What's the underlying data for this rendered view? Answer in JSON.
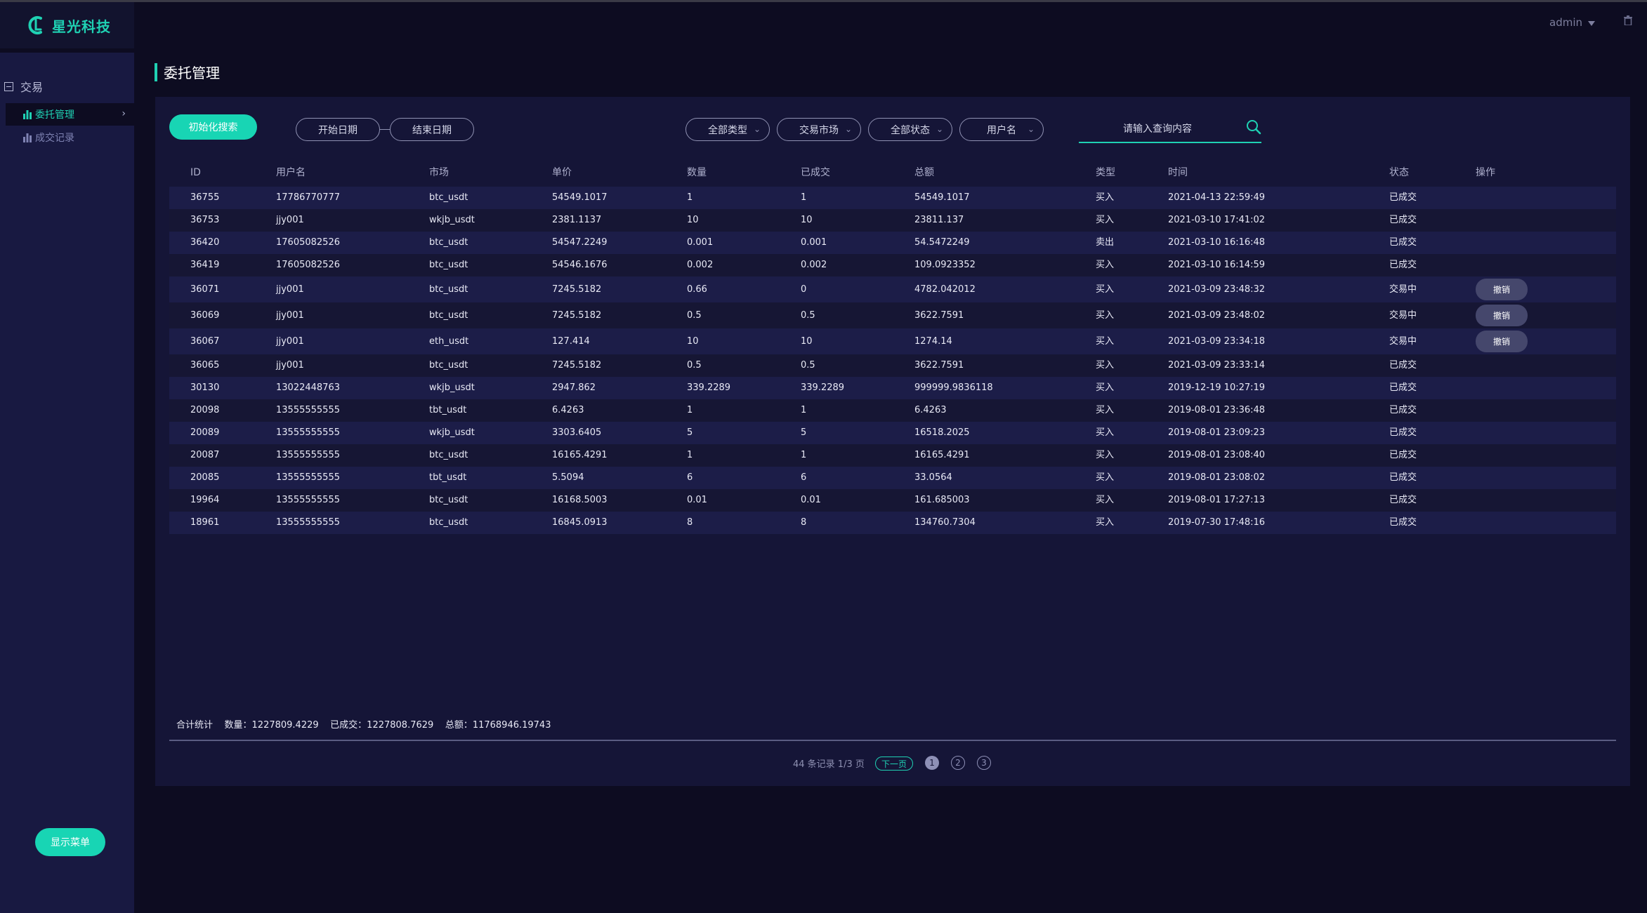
{
  "brand": {
    "name": "星光科技"
  },
  "header": {
    "user": "admin"
  },
  "sidebar": {
    "group_label": "交易",
    "items": [
      {
        "label": "委托管理",
        "active": true
      },
      {
        "label": "成交记录",
        "active": false
      }
    ],
    "show_menu_label": "显示菜单"
  },
  "page": {
    "title": "委托管理"
  },
  "filters": {
    "init_search_label": "初始化搜索",
    "start_date": "开始日期",
    "end_date": "结束日期",
    "type": "全部类型",
    "market": "交易市场",
    "status": "全部状态",
    "username": "用户名",
    "search_placeholder": "请输入查询内容"
  },
  "table": {
    "columns": [
      "ID",
      "用户名",
      "市场",
      "单价",
      "数量",
      "已成交",
      "总额",
      "类型",
      "时间",
      "状态",
      "操作"
    ],
    "revoke_label": "撤销",
    "rows": [
      [
        "36755",
        "17786770777",
        "btc_usdt",
        "54549.1017",
        "1",
        "1",
        "54549.1017",
        "买入",
        "2021-04-13 22:59:49",
        "已成交",
        ""
      ],
      [
        "36753",
        "jjy001",
        "wkjb_usdt",
        "2381.1137",
        "10",
        "10",
        "23811.137",
        "买入",
        "2021-03-10 17:41:02",
        "已成交",
        ""
      ],
      [
        "36420",
        "17605082526",
        "btc_usdt",
        "54547.2249",
        "0.001",
        "0.001",
        "54.5472249",
        "卖出",
        "2021-03-10 16:16:48",
        "已成交",
        ""
      ],
      [
        "36419",
        "17605082526",
        "btc_usdt",
        "54546.1676",
        "0.002",
        "0.002",
        "109.0923352",
        "买入",
        "2021-03-10 16:14:59",
        "已成交",
        ""
      ],
      [
        "36071",
        "jjy001",
        "btc_usdt",
        "7245.5182",
        "0.66",
        "0",
        "4782.042012",
        "买入",
        "2021-03-09 23:48:32",
        "交易中",
        "撤销"
      ],
      [
        "36069",
        "jjy001",
        "btc_usdt",
        "7245.5182",
        "0.5",
        "0.5",
        "3622.7591",
        "买入",
        "2021-03-09 23:48:02",
        "交易中",
        "撤销"
      ],
      [
        "36067",
        "jjy001",
        "eth_usdt",
        "127.414",
        "10",
        "10",
        "1274.14",
        "买入",
        "2021-03-09 23:34:18",
        "交易中",
        "撤销"
      ],
      [
        "36065",
        "jjy001",
        "btc_usdt",
        "7245.5182",
        "0.5",
        "0.5",
        "3622.7591",
        "买入",
        "2021-03-09 23:33:14",
        "已成交",
        ""
      ],
      [
        "30130",
        "13022448763",
        "wkjb_usdt",
        "2947.862",
        "339.2289",
        "339.2289",
        "999999.9836118",
        "买入",
        "2019-12-19 10:27:19",
        "已成交",
        ""
      ],
      [
        "20098",
        "13555555555",
        "tbt_usdt",
        "6.4263",
        "1",
        "1",
        "6.4263",
        "买入",
        "2019-08-01 23:36:48",
        "已成交",
        ""
      ],
      [
        "20089",
        "13555555555",
        "wkjb_usdt",
        "3303.6405",
        "5",
        "5",
        "16518.2025",
        "买入",
        "2019-08-01 23:09:23",
        "已成交",
        ""
      ],
      [
        "20087",
        "13555555555",
        "btc_usdt",
        "16165.4291",
        "1",
        "1",
        "16165.4291",
        "买入",
        "2019-08-01 23:08:40",
        "已成交",
        ""
      ],
      [
        "20085",
        "13555555555",
        "tbt_usdt",
        "5.5094",
        "6",
        "6",
        "33.0564",
        "买入",
        "2019-08-01 23:08:02",
        "已成交",
        ""
      ],
      [
        "19964",
        "13555555555",
        "btc_usdt",
        "16168.5003",
        "0.01",
        "0.01",
        "161.685003",
        "买入",
        "2019-08-01 17:27:13",
        "已成交",
        ""
      ],
      [
        "18961",
        "13555555555",
        "btc_usdt",
        "16845.0913",
        "8",
        "8",
        "134760.7304",
        "买入",
        "2019-07-30 17:48:16",
        "已成交",
        ""
      ]
    ]
  },
  "summary": {
    "text": "合计统计    数量：1227809.4229    已成交：1227808.7629    总额：11768946.19743"
  },
  "pagination": {
    "info": "44 条记录 1/3 页",
    "next_label": "下一页",
    "pages": [
      "1",
      "2",
      "3"
    ],
    "current": "1"
  },
  "colors": {
    "accent": "#1fd1b3",
    "background": "#0d0c21",
    "panel": "#151537",
    "sidebar": "#181941"
  }
}
